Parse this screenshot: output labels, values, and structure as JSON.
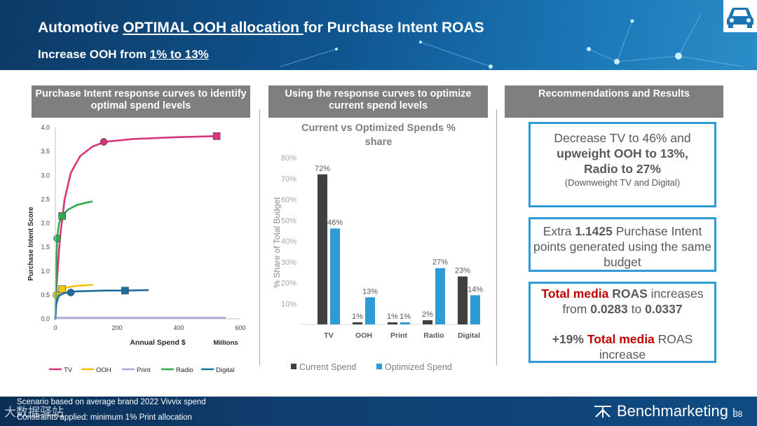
{
  "header": {
    "title_pre": "Automotive ",
    "title_u": "OPTIMAL OOH allocation ",
    "title_post": "for Purchase Intent ROAS",
    "subtitle_pre": "Increase OOH from ",
    "subtitle_u": "1% to 13%"
  },
  "icons": {
    "car": "car-icon",
    "brand": "benchmarketing-logo-icon"
  },
  "sections": {
    "left": "Purchase Intent response curves to identify optimal spend levels",
    "middle": "Using the response curves to optimize current spend levels",
    "right": "Recommendations and Results"
  },
  "chart_data": [
    {
      "type": "line",
      "title": "",
      "xlabel": "Annual Spend $",
      "xlabel_unit": "Millions",
      "ylabel": "Purchase Intent Score",
      "xlim": [
        0,
        600
      ],
      "ylim": [
        0,
        4.0
      ],
      "x_ticks": [
        "0",
        "200",
        "400",
        "600"
      ],
      "y_ticks": [
        "0.0",
        "0.5",
        "1.0",
        "1.5",
        "2.0",
        "2.5",
        "3.0",
        "3.5",
        "4.0"
      ],
      "series": [
        {
          "name": "TV",
          "color": "#d6357a",
          "points": [
            [
              0,
              0
            ],
            [
              5,
              0.8
            ],
            [
              15,
              1.7
            ],
            [
              30,
              2.5
            ],
            [
              50,
              3.05
            ],
            [
              80,
              3.4
            ],
            [
              120,
              3.6
            ],
            [
              160,
              3.7
            ],
            [
              250,
              3.76
            ],
            [
              400,
              3.8
            ],
            [
              525,
              3.82
            ]
          ],
          "markers": [
            {
              "x": 157,
              "y": 3.7,
              "shape": "circle"
            },
            {
              "x": 523,
              "y": 3.82,
              "shape": "square"
            }
          ]
        },
        {
          "name": "OOH",
          "color": "#f5c10a",
          "points": [
            [
              0,
              0.5
            ],
            [
              5,
              0.55
            ],
            [
              20,
              0.62
            ],
            [
              40,
              0.66
            ],
            [
              70,
              0.69
            ],
            [
              100,
              0.7
            ],
            [
              120,
              0.71
            ]
          ],
          "markers": [
            {
              "x": 4,
              "y": 0.5,
              "shape": "circle"
            },
            {
              "x": 22,
              "y": 0.62,
              "shape": "square"
            }
          ]
        },
        {
          "name": "Print",
          "color": "#a8a8dd",
          "points": [
            [
              0,
              0.02
            ],
            [
              550,
              0.02
            ]
          ],
          "markers": []
        },
        {
          "name": "Radio",
          "color": "#2eaa4f",
          "points": [
            [
              0,
              0
            ],
            [
              2,
              0.8
            ],
            [
              6,
              1.7
            ],
            [
              12,
              2.0
            ],
            [
              22,
              2.15
            ],
            [
              40,
              2.28
            ],
            [
              70,
              2.38
            ],
            [
              100,
              2.43
            ],
            [
              118,
              2.45
            ]
          ],
          "markers": [
            {
              "x": 6,
              "y": 1.68,
              "shape": "circle"
            },
            {
              "x": 22,
              "y": 2.15,
              "shape": "square"
            }
          ]
        },
        {
          "name": "Digital",
          "color": "#1f6e9e",
          "points": [
            [
              0,
              0
            ],
            [
              3,
              0.3
            ],
            [
              10,
              0.48
            ],
            [
              30,
              0.54
            ],
            [
              60,
              0.57
            ],
            [
              100,
              0.58
            ],
            [
              160,
              0.59
            ],
            [
              230,
              0.59
            ],
            [
              300,
              0.6
            ]
          ],
          "markers": [
            {
              "x": 50,
              "y": 0.55,
              "shape": "circle"
            },
            {
              "x": 226,
              "y": 0.59,
              "shape": "square"
            }
          ]
        }
      ]
    },
    {
      "type": "bar",
      "title": "Current vs Optimized Spends % share",
      "ylabel": "% Share of Total Budget",
      "ylim": [
        0,
        80
      ],
      "y_ticks": [
        "10%",
        "20%",
        "30%",
        "40%",
        "50%",
        "60%",
        "70%",
        "80%"
      ],
      "categories": [
        "TV",
        "OOH",
        "Print",
        "Radio",
        "Digital"
      ],
      "series": [
        {
          "name": "Current Spend",
          "color": "#404040",
          "values": [
            72,
            1,
            1,
            2,
            23
          ],
          "labels": [
            "72%",
            "1%",
            "1%",
            "2%",
            "23%"
          ]
        },
        {
          "name": "Optimized Spend",
          "color": "#2e9bd6",
          "values": [
            46,
            13,
            1,
            27,
            14
          ],
          "labels": [
            "46%",
            "13%",
            "1%",
            "27%",
            "14%"
          ]
        }
      ]
    }
  ],
  "recs": {
    "r1_line1": "Decrease TV to 46% and",
    "r1_line2": "upweight OOH to 13%,",
    "r1_line3": "Radio to 27%",
    "r1_note": "(Downweight TV and Digital)",
    "r2_pre": "Extra ",
    "r2_val": "1.1425",
    "r2_post": " Purchase Intent points generated using the same budget",
    "r3_red1": "Total media",
    "r3_b1": " ROAS",
    "r3_t1": " increases from ",
    "r3_v1": "0.0283",
    "r3_t2": " to ",
    "r3_v2": "0.0337",
    "r4_pct": "+19% ",
    "r4_red": "Total media",
    "r4_post": " ROAS increase"
  },
  "footer": {
    "note1": "Scenario based on average brand 2022  Vivvix spend",
    "note2": "Constraints applied: minimum  1% Print allocation",
    "brand": "Benchmarketing",
    "page": "38",
    "watermark": "大数据驿站"
  }
}
